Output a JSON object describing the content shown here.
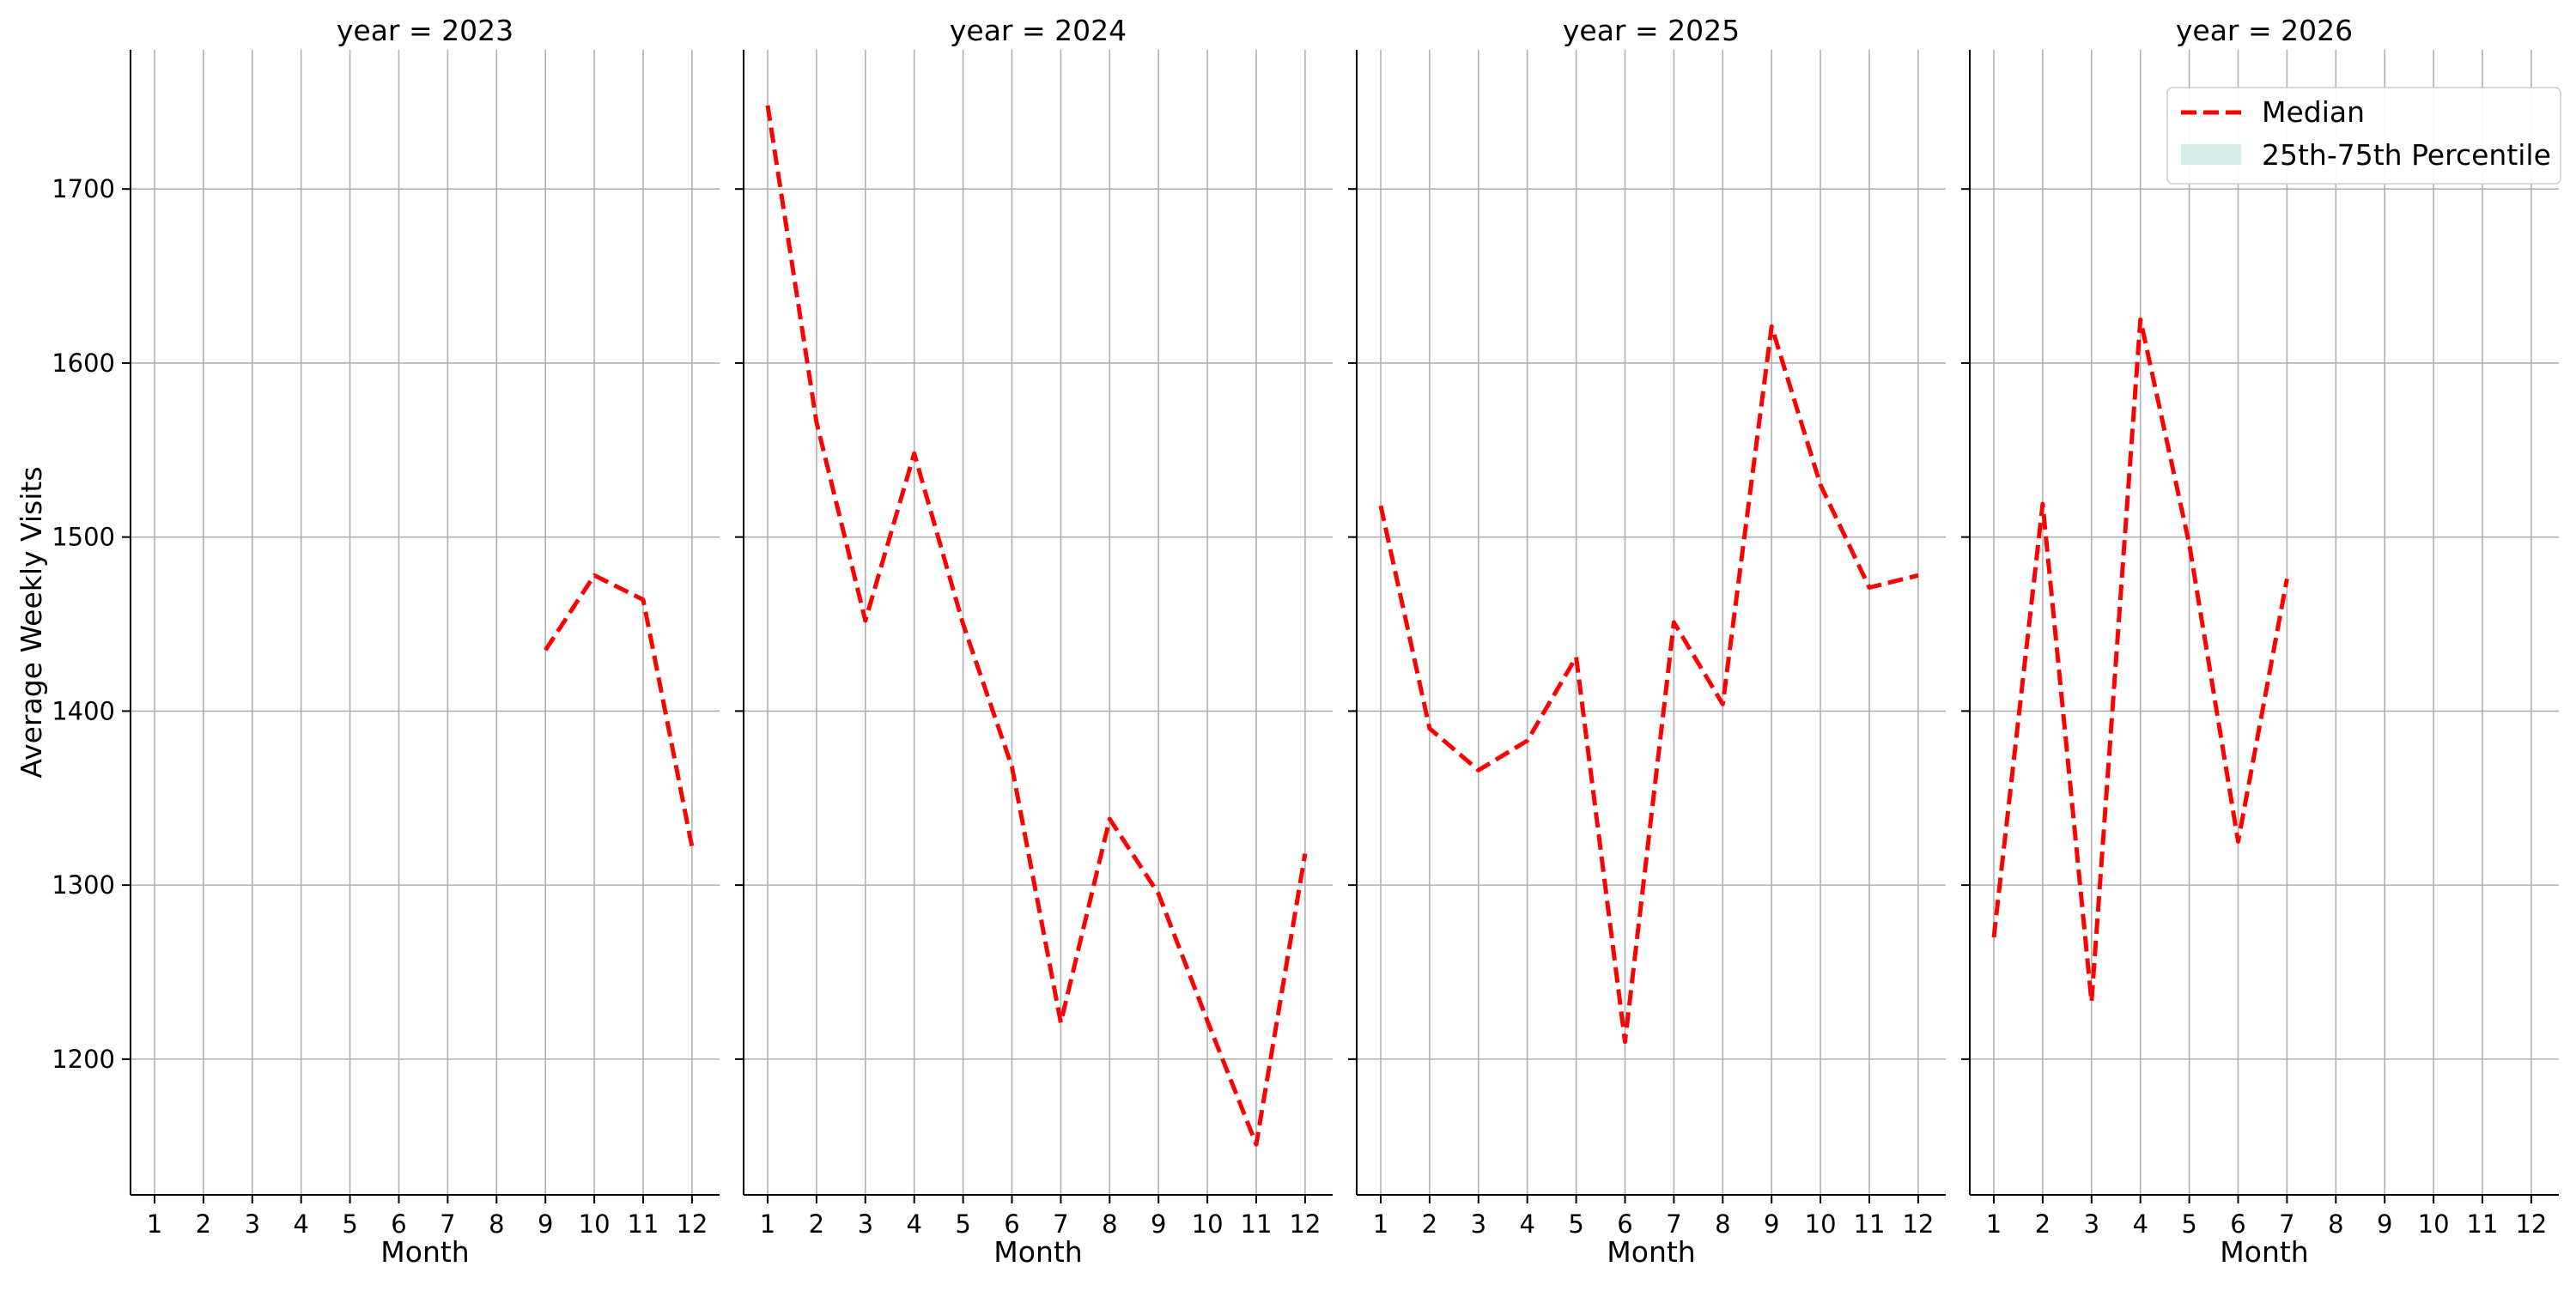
{
  "chart_data": {
    "type": "line",
    "ylabel": "Average Weekly Visits",
    "xlabel": "Month",
    "x": [
      1,
      2,
      3,
      4,
      5,
      6,
      7,
      8,
      9,
      10,
      11,
      12
    ],
    "ylim": [
      1122,
      1780
    ],
    "yticks": [
      1200,
      1300,
      1400,
      1500,
      1600,
      1700
    ],
    "grid": true,
    "legend": {
      "placement": "top-right",
      "entries": [
        {
          "label": "Median",
          "style": "dashed-line",
          "color": "#ff0000"
        },
        {
          "label": "25th-75th Percentile",
          "style": "filled-band",
          "color": "#d4ede6"
        }
      ]
    },
    "panels": [
      {
        "title": "year = 2023",
        "series": [
          {
            "name": "Median",
            "x": [
              9,
              10,
              11,
              12
            ],
            "values": [
              1435,
              1478,
              1464,
              1322
            ]
          }
        ]
      },
      {
        "title": "year = 2024",
        "series": [
          {
            "name": "Median",
            "x": [
              1,
              2,
              3,
              4,
              5,
              6,
              7,
              8,
              9,
              10,
              11,
              12
            ],
            "values": [
              1748,
              1566,
              1452,
              1548,
              1450,
              1368,
              1221,
              1338,
              1295,
              1222,
              1151,
              1318
            ]
          }
        ]
      },
      {
        "title": "year = 2025",
        "series": [
          {
            "name": "Median",
            "x": [
              1,
              2,
              3,
              4,
              5,
              6,
              7,
              8,
              9,
              10,
              11,
              12
            ],
            "values": [
              1518,
              1390,
              1366,
              1383,
              1431,
              1210,
              1451,
              1404,
              1621,
              1530,
              1471,
              1478
            ]
          }
        ]
      },
      {
        "title": "year = 2026",
        "series": [
          {
            "name": "Median",
            "x": [
              1,
              2,
              3,
              4,
              5,
              6,
              7
            ],
            "values": [
              1270,
              1519,
              1233,
              1625,
              1496,
              1325,
              1476
            ]
          }
        ]
      }
    ],
    "colors": {
      "median": "#ff0000",
      "grid": "#b0b0b0",
      "axis": "#000000",
      "band": "#d4ede6"
    }
  }
}
